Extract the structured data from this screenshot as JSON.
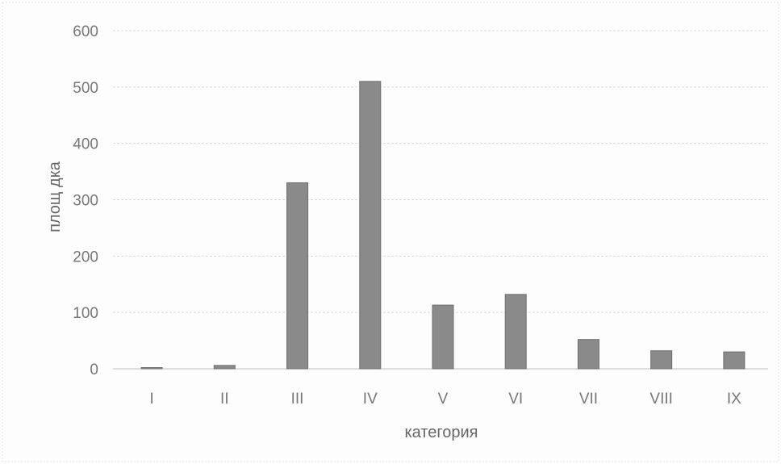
{
  "chart_data": {
    "type": "bar",
    "title": "",
    "xlabel": "категория",
    "ylabel": "площ дка",
    "categories": [
      "I",
      "II",
      "III",
      "IV",
      "V",
      "VI",
      "VII",
      "VIII",
      "IX"
    ],
    "values": [
      1,
      6,
      330,
      510,
      113,
      132,
      52,
      32,
      30
    ],
    "ylim": [
      0,
      600
    ],
    "yticks": [
      0,
      100,
      200,
      300,
      400,
      500,
      600
    ],
    "grid": true,
    "legend": "none",
    "colors": {
      "bar": "#8a8a8a",
      "grid": "#d9d9d9",
      "text": "#777777"
    }
  }
}
